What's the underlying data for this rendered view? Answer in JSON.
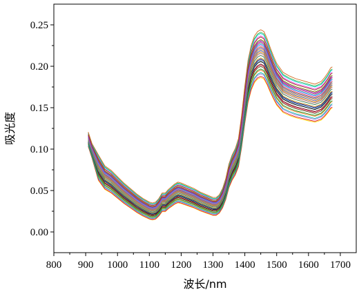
{
  "chart_data": {
    "type": "line",
    "xlabel": "波长/nm",
    "ylabel": "吸光度",
    "xlim": [
      800,
      1750
    ],
    "ylim": [
      -0.025,
      0.275
    ],
    "xticks": [
      800,
      900,
      1000,
      1100,
      1200,
      1300,
      1400,
      1500,
      1600,
      1700
    ],
    "yticks": [
      0.0,
      0.05,
      0.1,
      0.15,
      0.2,
      0.25
    ],
    "ytick_labels": [
      "0.00",
      "0.05",
      "0.10",
      "0.15",
      "0.20",
      "0.25"
    ],
    "xtick_labels": [
      "800",
      "900",
      "1000",
      "1100",
      "1200",
      "1300",
      "1400",
      "1500",
      "1600",
      "1700"
    ],
    "grid": false,
    "legend": "none",
    "base_spectrum": {
      "x": [
        908,
        920,
        940,
        960,
        980,
        1000,
        1020,
        1040,
        1060,
        1080,
        1100,
        1110,
        1120,
        1130,
        1140,
        1150,
        1160,
        1170,
        1180,
        1190,
        1200,
        1220,
        1240,
        1260,
        1280,
        1300,
        1310,
        1320,
        1330,
        1340,
        1350,
        1360,
        1370,
        1380,
        1390,
        1400,
        1410,
        1420,
        1430,
        1440,
        1450,
        1460,
        1470,
        1480,
        1490,
        1500,
        1520,
        1540,
        1560,
        1580,
        1600,
        1620,
        1640,
        1650,
        1660,
        1670,
        1675
      ],
      "y": [
        0.112,
        0.098,
        0.078,
        0.066,
        0.061,
        0.054,
        0.047,
        0.041,
        0.035,
        0.03,
        0.026,
        0.025,
        0.026,
        0.03,
        0.036,
        0.036,
        0.04,
        0.043,
        0.046,
        0.048,
        0.047,
        0.044,
        0.041,
        0.037,
        0.034,
        0.031,
        0.031,
        0.034,
        0.041,
        0.052,
        0.068,
        0.078,
        0.085,
        0.096,
        0.122,
        0.154,
        0.182,
        0.199,
        0.209,
        0.214,
        0.216,
        0.214,
        0.206,
        0.196,
        0.187,
        0.179,
        0.169,
        0.165,
        0.162,
        0.16,
        0.158,
        0.156,
        0.159,
        0.163,
        0.168,
        0.174,
        0.175
      ]
    },
    "series_count": 34,
    "series_offsets": [
      -0.01,
      0.017,
      -0.02,
      0.002,
      -0.014,
      0.01,
      -0.009,
      0.014,
      -0.013,
      -0.001,
      0.008,
      -0.017,
      0.005,
      0.003,
      -0.009,
      -0.002,
      0.011,
      0.001,
      -0.005,
      0.0,
      -0.007,
      -0.019,
      0.016,
      0.004,
      0.006,
      -0.013,
      0.007,
      0.013,
      -0.016,
      -0.004,
      0.009,
      -0.011,
      -0.006,
      0.019
    ],
    "series_colors": [
      "#e6194b",
      "#3cb44b",
      "#ffd800",
      "#4363d8",
      "#f58231",
      "#911eb4",
      "#42d4f4",
      "#f032e6",
      "#9acd32",
      "#ffb6c1",
      "#469990",
      "#9370db",
      "#9a6324",
      "#daa520",
      "#800000",
      "#2e8b57",
      "#808000",
      "#ff8c00",
      "#000075",
      "#808080",
      "#000000",
      "#dc143c",
      "#00ced1",
      "#6a5acd",
      "#ff69b4",
      "#228b22",
      "#1e90ff",
      "#8b4513",
      "#00bfa5",
      "#b8860b",
      "#c71585",
      "#556b2f",
      "#4682b4",
      "#d2691e"
    ]
  }
}
